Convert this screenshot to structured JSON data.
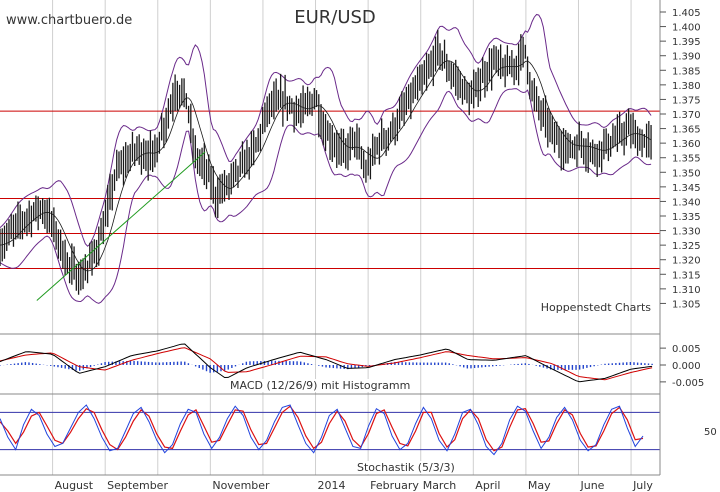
{
  "header": {
    "watermark": "www.chartbuero.de",
    "title": "EUR/USD",
    "credit": "Hoppenstedt Charts"
  },
  "colors": {
    "price": "#1a1a1a",
    "bands": "#6a2a8a",
    "support": "#cc0000",
    "trend": "#1e9a1e",
    "macd_line": "#000000",
    "macd_signal": "#d00000",
    "histogram": "#2244cc",
    "stoch_k": "#2244dd",
    "stoch_d": "#dd1111",
    "stoch_levels": "#3333aa",
    "grid": "#cfcfcf"
  },
  "panels": [
    {
      "id": "price",
      "label": ""
    },
    {
      "id": "macd",
      "label": "MACD (12/26/9) mit Histogramm"
    },
    {
      "id": "stoch",
      "label": "Stochastik (5/3/3)"
    }
  ],
  "chart_data": [
    {
      "type": "line",
      "title": "EUR/USD",
      "ylim": [
        1.3,
        1.405
      ],
      "y_ticks": [
        "1.405",
        "1.400",
        "1.395",
        "1.390",
        "1.385",
        "1.380",
        "1.375",
        "1.370",
        "1.365",
        "1.360",
        "1.355",
        "1.350",
        "1.345",
        "1.340",
        "1.335",
        "1.330",
        "1.325",
        "1.320",
        "1.315",
        "1.310",
        "1.305"
      ],
      "x_labels": [
        "August",
        "September",
        "November",
        "2014",
        "February",
        "March",
        "April",
        "May",
        "June",
        "July"
      ],
      "x_label_months": [
        1,
        2,
        4,
        6,
        7,
        8,
        9,
        10,
        11,
        12
      ],
      "x_grid_months": [
        1,
        2,
        3,
        4,
        5,
        6,
        7,
        8,
        9,
        10,
        11,
        12
      ],
      "month_index_start": "2013-07",
      "series": [
        {
          "values_by_month": [
            [
              0.0,
              1.325
            ],
            [
              0.4,
              1.333
            ],
            [
              0.8,
              1.338
            ],
            [
              1.0,
              1.332
            ],
            [
              1.3,
              1.318
            ],
            [
              1.55,
              1.314
            ],
            [
              1.8,
              1.322
            ],
            [
              2.0,
              1.333
            ],
            [
              2.2,
              1.35
            ],
            [
              2.6,
              1.358
            ],
            [
              2.9,
              1.355
            ],
            [
              3.1,
              1.365
            ],
            [
              3.35,
              1.379
            ],
            [
              3.55,
              1.375
            ],
            [
              3.7,
              1.356
            ],
            [
              3.95,
              1.35
            ],
            [
              4.1,
              1.342
            ],
            [
              4.35,
              1.346
            ],
            [
              4.6,
              1.352
            ],
            [
              4.85,
              1.358
            ],
            [
              5.1,
              1.372
            ],
            [
              5.4,
              1.375
            ],
            [
              5.7,
              1.37
            ],
            [
              6.0,
              1.376
            ],
            [
              6.15,
              1.365
            ],
            [
              6.35,
              1.36
            ],
            [
              6.55,
              1.356
            ],
            [
              6.75,
              1.362
            ],
            [
              6.95,
              1.35
            ],
            [
              7.2,
              1.36
            ],
            [
              7.45,
              1.364
            ],
            [
              7.7,
              1.372
            ],
            [
              7.9,
              1.378
            ],
            [
              8.1,
              1.383
            ],
            [
              8.35,
              1.392
            ],
            [
              8.5,
              1.386
            ],
            [
              8.75,
              1.38
            ],
            [
              8.95,
              1.375
            ],
            [
              9.15,
              1.382
            ],
            [
              9.4,
              1.388
            ],
            [
              9.6,
              1.385
            ],
            [
              9.8,
              1.387
            ],
            [
              10.0,
              1.392
            ],
            [
              10.1,
              1.378
            ],
            [
              10.3,
              1.37
            ],
            [
              10.55,
              1.362
            ],
            [
              10.8,
              1.358
            ],
            [
              11.05,
              1.36
            ],
            [
              11.3,
              1.356
            ],
            [
              11.5,
              1.359
            ],
            [
              11.75,
              1.362
            ],
            [
              11.95,
              1.365
            ],
            [
              12.15,
              1.361
            ],
            [
              12.35,
              1.36
            ]
          ],
          "name": ""
        }
      ],
      "support_lines": [
        1.371,
        1.341,
        1.329,
        1.317
      ],
      "trendline": [
        [
          0.7,
          1.306
        ],
        [
          3.9,
          1.357
        ]
      ],
      "range_labels": [
        "1.405",
        "1.305"
      ]
    },
    {
      "type": "line",
      "title": "MACD (12/26/9) mit Histogramm",
      "ylim": [
        -0.008,
        0.008
      ],
      "y_ticks": [
        "0.005",
        "0.000",
        "-0.005"
      ],
      "series": [
        {
          "name": "",
          "values_by_month": [
            [
              0.0,
              0.001
            ],
            [
              0.5,
              0.004
            ],
            [
              1.0,
              0.0032
            ],
            [
              1.5,
              -0.0025
            ],
            [
              2.0,
              -0.0005
            ],
            [
              2.5,
              0.0028
            ],
            [
              3.0,
              0.0042
            ],
            [
              3.5,
              0.0064
            ],
            [
              4.0,
              -0.0008
            ],
            [
              4.3,
              -0.004
            ],
            [
              4.7,
              -0.0008
            ],
            [
              5.2,
              0.0016
            ],
            [
              5.7,
              0.0038
            ],
            [
              6.2,
              0.0016
            ],
            [
              6.6,
              -0.001
            ],
            [
              7.0,
              -0.0008
            ],
            [
              7.5,
              0.0016
            ],
            [
              8.0,
              0.003
            ],
            [
              8.5,
              0.0048
            ],
            [
              8.9,
              0.0016
            ],
            [
              9.4,
              0.0014
            ],
            [
              10.0,
              0.0028
            ],
            [
              10.5,
              -0.0012
            ],
            [
              11.0,
              -0.005
            ],
            [
              11.5,
              -0.004
            ],
            [
              12.0,
              -0.0012
            ],
            [
              12.4,
              -0.0004
            ]
          ]
        },
        {
          "name": "",
          "values_by_month": [
            [
              0.0,
              0.0012
            ],
            [
              0.5,
              0.003
            ],
            [
              1.0,
              0.0036
            ],
            [
              1.5,
              -0.0005
            ],
            [
              2.0,
              -0.0015
            ],
            [
              2.5,
              0.0014
            ],
            [
              3.0,
              0.0034
            ],
            [
              3.5,
              0.0052
            ],
            [
              4.0,
              0.0018
            ],
            [
              4.3,
              -0.0022
            ],
            [
              4.7,
              -0.002
            ],
            [
              5.2,
              0.0002
            ],
            [
              5.7,
              0.0026
            ],
            [
              6.2,
              0.0024
            ],
            [
              6.6,
              0.0004
            ],
            [
              7.0,
              -0.0004
            ],
            [
              7.5,
              0.0006
            ],
            [
              8.0,
              0.0022
            ],
            [
              8.5,
              0.004
            ],
            [
              8.9,
              0.0028
            ],
            [
              9.4,
              0.0018
            ],
            [
              10.0,
              0.0022
            ],
            [
              10.5,
              0.0004
            ],
            [
              11.0,
              -0.0034
            ],
            [
              11.5,
              -0.0044
            ],
            [
              12.0,
              -0.0022
            ],
            [
              12.4,
              -0.0008
            ]
          ]
        }
      ]
    },
    {
      "type": "line",
      "title": "Stochastik (5/3/3)",
      "ylim": [
        0,
        100
      ],
      "y_ticks": [
        "50"
      ],
      "levels": [
        80,
        20
      ],
      "series": [
        {
          "name": "",
          "values": [
            70,
            40,
            20,
            60,
            85,
            75,
            45,
            25,
            30,
            55,
            80,
            92,
            70,
            40,
            18,
            22,
            50,
            78,
            88,
            65,
            35,
            15,
            28,
            62,
            85,
            80,
            45,
            22,
            40,
            70,
            90,
            75,
            40,
            20,
            35,
            65,
            88,
            92,
            60,
            30,
            15,
            40,
            75,
            85,
            55,
            25,
            22,
            58,
            86,
            78,
            42,
            20,
            30,
            62,
            88,
            70,
            35,
            18,
            45,
            80,
            85,
            60,
            25,
            12,
            30,
            68,
            90,
            82,
            50,
            22,
            40,
            72,
            88,
            68,
            35,
            18,
            28,
            60,
            85,
            90,
            55,
            25,
            42
          ]
        },
        {
          "name": "",
          "values": [
            65,
            50,
            30,
            48,
            74,
            80,
            58,
            35,
            30,
            48,
            70,
            86,
            80,
            52,
            28,
            20,
            40,
            66,
            84,
            74,
            45,
            24,
            22,
            50,
            76,
            84,
            58,
            32,
            35,
            60,
            84,
            82,
            52,
            28,
            30,
            55,
            80,
            90,
            72,
            42,
            22,
            32,
            62,
            82,
            66,
            36,
            24,
            46,
            78,
            84,
            56,
            30,
            26,
            50,
            80,
            80,
            46,
            24,
            36,
            70,
            84,
            70,
            36,
            18,
            24,
            56,
            84,
            86,
            62,
            32,
            34,
            62,
            84,
            76,
            46,
            24,
            26,
            50,
            78,
            88,
            68,
            36,
            38
          ]
        }
      ]
    }
  ]
}
